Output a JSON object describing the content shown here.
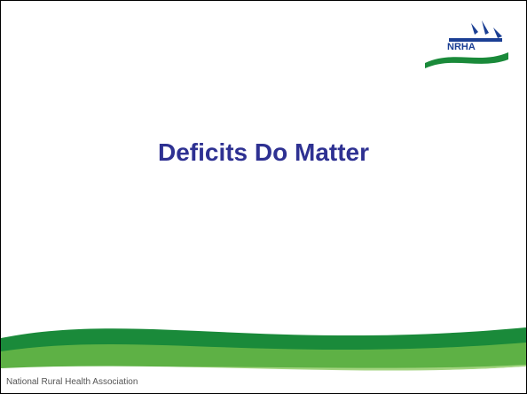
{
  "slide": {
    "title": "Deficits Do Matter",
    "logo_text": "NRHA",
    "footer": "National Rural Health Association"
  }
}
